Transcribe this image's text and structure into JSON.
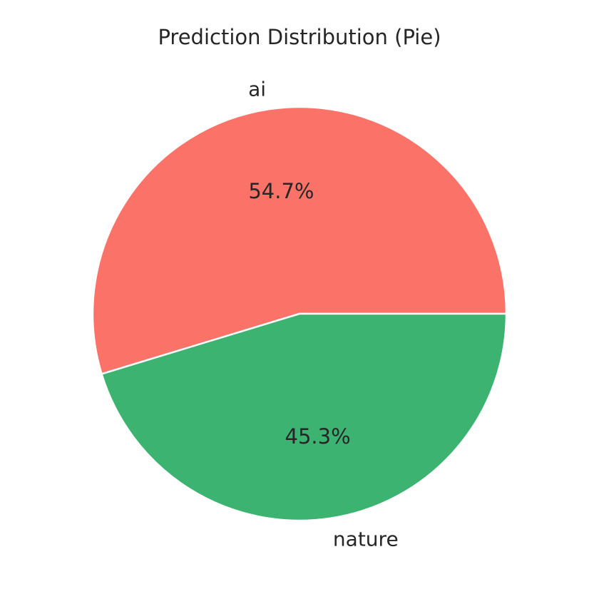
{
  "chart_data": {
    "type": "pie",
    "title": "Prediction Distribution (Pie)",
    "slices": [
      {
        "label": "ai",
        "value": 54.7,
        "pct_label": "54.7%",
        "color": "#FA7268"
      },
      {
        "label": "nature",
        "value": 45.3,
        "pct_label": "45.3%",
        "color": "#3CB371"
      }
    ],
    "start_angle_deg": 0,
    "direction": "counterclockwise",
    "edge_color": "#ffffff"
  }
}
